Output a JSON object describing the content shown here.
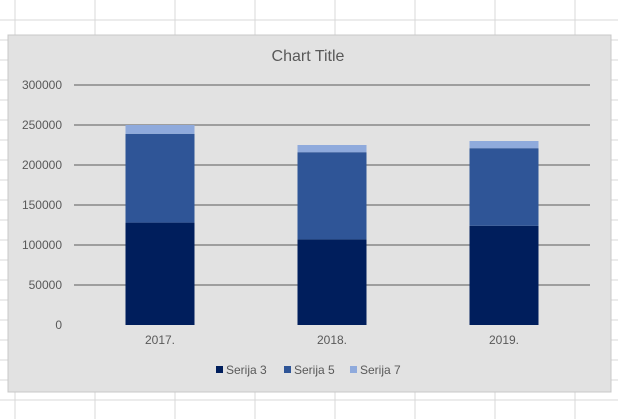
{
  "colors": {
    "plot_bg": "#e2e2e2",
    "grid": "#595959",
    "sheet_grid": "#d9d9d9",
    "text": "#595959",
    "series": [
      "#001e5c",
      "#2f5597",
      "#8faadc"
    ]
  },
  "chart_data": {
    "type": "bar",
    "stacked": true,
    "title": "Chart Title",
    "categories": [
      "2017.",
      "2018.",
      "2019."
    ],
    "series": [
      {
        "name": "Serija 3",
        "values": [
          128000,
          107000,
          124000
        ]
      },
      {
        "name": "Serija 5",
        "values": [
          111000,
          109000,
          97000
        ]
      },
      {
        "name": "Serija 7",
        "values": [
          11000,
          9000,
          9000
        ]
      }
    ],
    "ylim": [
      0,
      300000
    ],
    "yticks": [
      "0",
      "50000",
      "100000",
      "150000",
      "200000",
      "250000",
      "300000"
    ],
    "grid": true,
    "legend_position": "bottom"
  }
}
